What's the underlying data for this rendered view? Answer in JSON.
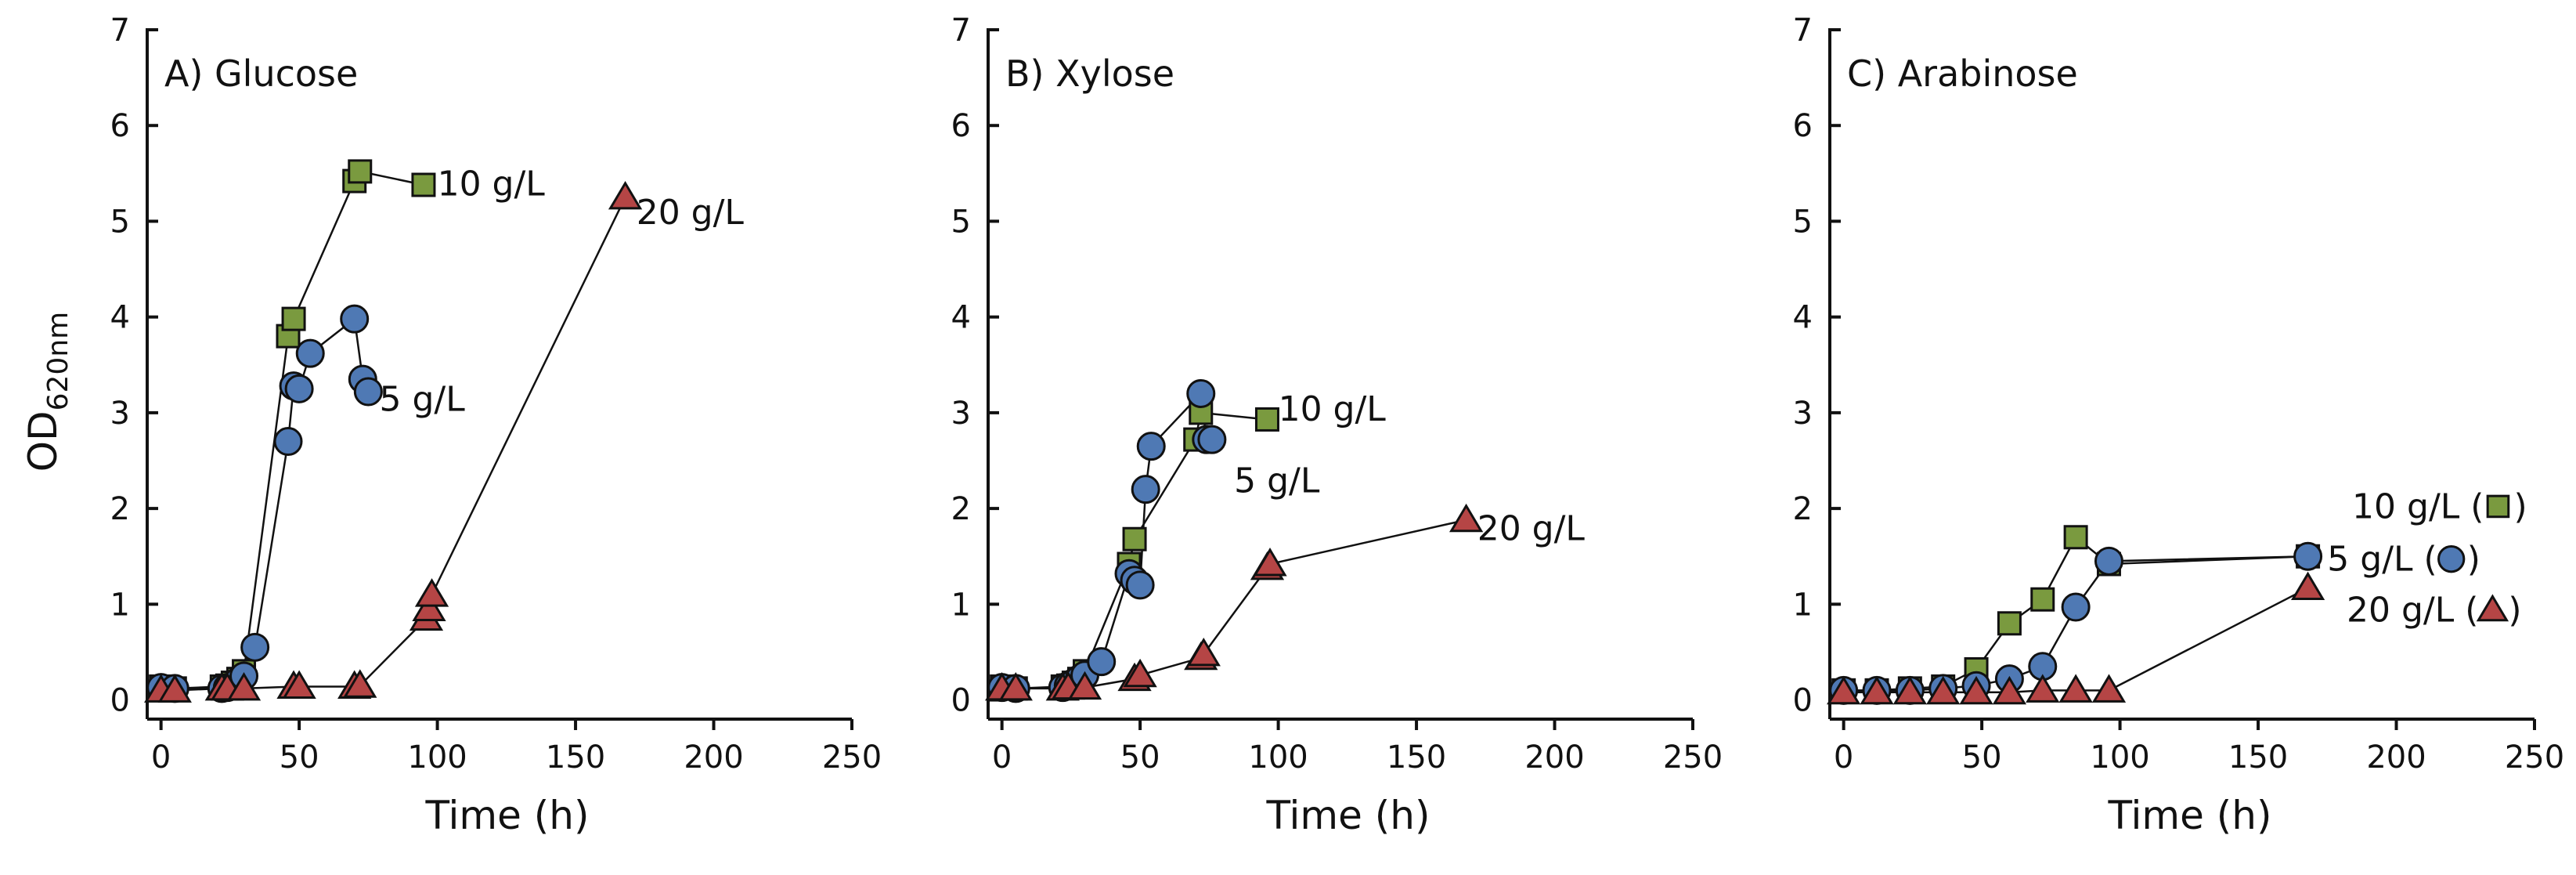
{
  "colors": {
    "square": "#7a9a3f",
    "circle": "#4f79b4",
    "triangle": "#b54545"
  },
  "y_axis_title_main": "OD",
  "y_axis_title_sub": "620nm",
  "x_axis_title": "Time (h)",
  "chart_data": [
    {
      "type": "line",
      "title": "A) Glucose",
      "xlabel": "Time (h)",
      "ylabel": "OD620nm",
      "xlim": [
        -5,
        250
      ],
      "ylim": [
        -0.2,
        7
      ],
      "xticks": [
        "0",
        "50",
        "100",
        "150",
        "200",
        "250"
      ],
      "yticks": [
        "0",
        "1",
        "2",
        "3",
        "4",
        "5",
        "6",
        "7"
      ],
      "series": [
        {
          "name": "10 g/L",
          "marker": "square",
          "x": [
            0,
            5,
            22,
            24,
            26,
            28,
            30,
            46,
            48,
            70,
            72,
            95
          ],
          "y": [
            0.14,
            0.12,
            0.14,
            0.15,
            0.18,
            0.22,
            0.3,
            3.8,
            3.98,
            5.42,
            5.52,
            5.38
          ]
        },
        {
          "name": "5 g/L",
          "marker": "circle",
          "x": [
            0,
            5,
            22,
            24,
            26,
            28,
            30,
            34,
            46,
            48,
            50,
            54,
            70,
            73,
            75
          ],
          "y": [
            0.13,
            0.12,
            0.12,
            0.13,
            0.15,
            0.2,
            0.25,
            0.55,
            2.7,
            3.28,
            3.25,
            3.62,
            3.98,
            3.35,
            3.22
          ]
        },
        {
          "name": "20 g/L",
          "marker": "triangle",
          "x": [
            0,
            5,
            22,
            24,
            30,
            48,
            50,
            70,
            72,
            96,
            97,
            98,
            168
          ],
          "y": [
            0.1,
            0.1,
            0.12,
            0.12,
            0.12,
            0.14,
            0.14,
            0.14,
            0.15,
            0.85,
            0.95,
            1.1,
            5.25
          ]
        }
      ],
      "labels": [
        {
          "text": "10 g/L",
          "x": 100,
          "y": 5.4
        },
        {
          "text": "5 g/L",
          "x": 79,
          "y": 3.15
        },
        {
          "text": "20 g/L",
          "x": 172,
          "y": 5.1
        }
      ]
    },
    {
      "type": "line",
      "title": "B) Xylose",
      "xlabel": "Time (h)",
      "ylabel": "OD620nm",
      "xlim": [
        -5,
        250
      ],
      "ylim": [
        -0.2,
        7
      ],
      "xticks": [
        "0",
        "50",
        "100",
        "150",
        "200",
        "250"
      ],
      "yticks": [
        "0",
        "1",
        "2",
        "3",
        "4",
        "5",
        "6",
        "7"
      ],
      "series": [
        {
          "name": "10 g/L",
          "marker": "square",
          "x": [
            0,
            5,
            22,
            24,
            26,
            28,
            30,
            46,
            48,
            70,
            72,
            96
          ],
          "y": [
            0.14,
            0.12,
            0.14,
            0.15,
            0.18,
            0.22,
            0.3,
            1.42,
            1.68,
            2.72,
            3.0,
            2.93
          ]
        },
        {
          "name": "5 g/L",
          "marker": "circle",
          "x": [
            0,
            5,
            22,
            24,
            26,
            28,
            30,
            36,
            46,
            48,
            50,
            52,
            54,
            72,
            74,
            76
          ],
          "y": [
            0.13,
            0.12,
            0.13,
            0.15,
            0.18,
            0.22,
            0.26,
            0.4,
            1.32,
            1.25,
            1.2,
            2.2,
            2.65,
            3.2,
            2.72,
            2.72
          ]
        },
        {
          "name": "20 g/L",
          "marker": "triangle",
          "x": [
            0,
            5,
            22,
            24,
            30,
            48,
            50,
            72,
            73,
            96,
            97,
            168
          ],
          "y": [
            0.12,
            0.12,
            0.12,
            0.13,
            0.13,
            0.22,
            0.26,
            0.44,
            0.48,
            1.38,
            1.42,
            1.88
          ]
        }
      ],
      "labels": [
        {
          "text": "10 g/L",
          "x": 100,
          "y": 3.05
        },
        {
          "text": "5 g/L",
          "x": 84,
          "y": 2.3
        },
        {
          "text": "20 g/L",
          "x": 172,
          "y": 1.8
        }
      ]
    },
    {
      "type": "line",
      "title": "C) Arabinose",
      "xlabel": "Time (h)",
      "ylabel": "OD620nm",
      "xlim": [
        -5,
        250
      ],
      "ylim": [
        -0.2,
        7
      ],
      "xticks": [
        "0",
        "50",
        "100",
        "150",
        "200",
        "250"
      ],
      "yticks": [
        "0",
        "1",
        "2",
        "3",
        "4",
        "5",
        "6",
        "7"
      ],
      "series": [
        {
          "name": "10 g/L",
          "marker": "square",
          "x": [
            0,
            12,
            24,
            36,
            48,
            60,
            72,
            84,
            96,
            168
          ],
          "y": [
            0.1,
            0.1,
            0.12,
            0.14,
            0.32,
            0.8,
            1.05,
            1.7,
            1.42,
            1.5
          ]
        },
        {
          "name": "5 g/L",
          "marker": "circle",
          "x": [
            0,
            12,
            24,
            36,
            48,
            60,
            72,
            84,
            96,
            168
          ],
          "y": [
            0.1,
            0.1,
            0.1,
            0.12,
            0.15,
            0.22,
            0.35,
            0.97,
            1.45,
            1.5
          ]
        },
        {
          "name": "20 g/L",
          "marker": "triangle",
          "x": [
            0,
            12,
            24,
            36,
            48,
            60,
            72,
            84,
            96,
            168
          ],
          "y": [
            0.08,
            0.08,
            0.08,
            0.08,
            0.08,
            0.08,
            0.1,
            0.1,
            0.1,
            1.17
          ]
        }
      ],
      "labels": [
        {
          "text": "10 g/L (",
          "x": 184,
          "y": 2.03,
          "marker": "square",
          "close": ")"
        },
        {
          "text": "5 g/L (",
          "x": 175,
          "y": 1.48,
          "marker": "circle",
          "close": ")"
        },
        {
          "text": "20 g/L (",
          "x": 182,
          "y": 0.95,
          "marker": "triangle",
          "close": ")"
        }
      ]
    }
  ]
}
